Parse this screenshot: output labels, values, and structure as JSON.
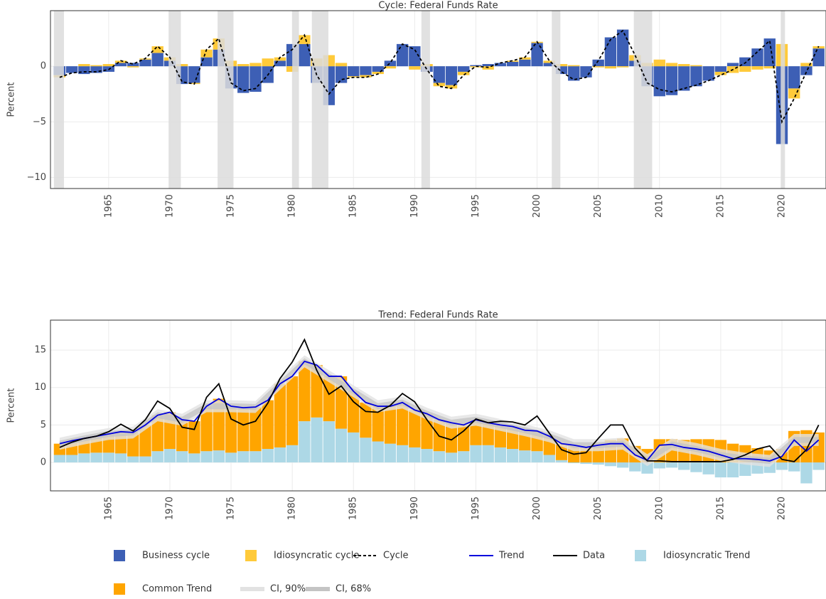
{
  "chart_data": [
    {
      "type": "bar",
      "title": "Cycle: Federal Funds Rate",
      "y_label": "Percent",
      "xlim": [
        1960.25,
        2023.6
      ],
      "xticks": [
        1965,
        1970,
        1975,
        1980,
        1985,
        1990,
        1995,
        2000,
        2005,
        2010,
        2015,
        2020
      ],
      "ylim": [
        -11,
        5
      ],
      "yticks": [
        {
          "value": -10,
          "label": "−10"
        },
        {
          "value": -5,
          "label": "−5"
        },
        0
      ],
      "grid": true,
      "x": [
        1961,
        1962,
        1963,
        1964,
        1965,
        1966,
        1967,
        1968,
        1969,
        1970,
        1971,
        1972,
        1973,
        1974,
        1975,
        1976,
        1977,
        1978,
        1979,
        1980,
        1981,
        1982,
        1983,
        1984,
        1985,
        1986,
        1987,
        1988,
        1989,
        1990,
        1991,
        1992,
        1993,
        1994,
        1995,
        1996,
        1997,
        1998,
        1999,
        2000,
        2001,
        2002,
        2003,
        2004,
        2005,
        2006,
        2007,
        2008,
        2009,
        2010,
        2011,
        2012,
        2013,
        2014,
        2015,
        2016,
        2017,
        2018,
        2019,
        2020,
        2021,
        2022,
        2023
      ],
      "recessions": [
        [
          1960.53,
          1961.35
        ],
        [
          1969.9,
          1970.9
        ],
        [
          1973.9,
          1975.2
        ],
        [
          1980.0,
          1980.55
        ],
        [
          1981.6,
          1982.95
        ],
        [
          1990.55,
          1991.25
        ],
        [
          2001.2,
          2001.9
        ],
        [
          2007.9,
          2009.4
        ],
        [
          2019.9,
          2020.25
        ]
      ],
      "recession_color": "#dcdcdc",
      "series": [
        {
          "name": "Business cycle",
          "type": "bar",
          "color": "#3d5fb5",
          "values": [
            -0.8,
            -0.6,
            -0.7,
            -0.6,
            -0.5,
            0.3,
            0.3,
            0.6,
            1.2,
            0.5,
            -1.6,
            -1.5,
            0.8,
            1.5,
            -2.0,
            -2.4,
            -2.3,
            -1.5,
            0.5,
            2.0,
            2.0,
            -1.5,
            -3.5,
            -1.5,
            -0.9,
            -0.8,
            -0.5,
            0.5,
            2.0,
            1.8,
            -0.5,
            -1.5,
            -1.7,
            -0.5,
            0.1,
            0.2,
            0.3,
            0.4,
            0.6,
            2.1,
            0.3,
            -0.7,
            -1.3,
            -1.0,
            0.6,
            2.6,
            3.3,
            0.5,
            -1.8,
            -2.7,
            -2.6,
            -2.2,
            -1.8,
            -1.3,
            -0.5,
            0.3,
            0.8,
            1.6,
            2.5,
            -7.0,
            -2.0,
            -0.8,
            1.6
          ]
        },
        {
          "name": "Idiosyncratic cycle",
          "type": "bar",
          "color": "#ffca3a",
          "values": [
            -0.2,
            0,
            0.2,
            0.1,
            0.2,
            0.2,
            -0.1,
            0.1,
            0.6,
            0.3,
            0.2,
            -0.1,
            0.7,
            1.0,
            0.5,
            0.2,
            0.3,
            0.7,
            0.3,
            -0.5,
            0.8,
            0.7,
            1.0,
            0.3,
            -0.1,
            -0.2,
            -0.2,
            -0.2,
            0,
            -0.3,
            0.2,
            -0.3,
            -0.3,
            -0.3,
            -0.1,
            -0.3,
            0,
            0.1,
            0.2,
            0.1,
            0.2,
            0.2,
            0.1,
            0,
            -0.1,
            -0.2,
            -0.1,
            0.5,
            0.3,
            0.6,
            0.3,
            0.2,
            0.1,
            0,
            -0.3,
            -0.6,
            -0.5,
            -0.3,
            -0.2,
            2.0,
            -0.9,
            0.3,
            0.2
          ]
        },
        {
          "name": "Cycle",
          "type": "line",
          "dash": true,
          "color": "#000000",
          "values": [
            -1.0,
            -0.6,
            -0.5,
            -0.5,
            -0.3,
            0.5,
            0.2,
            0.7,
            1.8,
            0.8,
            -1.4,
            -1.6,
            1.5,
            2.5,
            -1.5,
            -2.2,
            -2.0,
            -0.8,
            0.8,
            1.5,
            2.8,
            -0.8,
            -2.5,
            -1.2,
            -1.0,
            -1.0,
            -0.7,
            0.3,
            2.0,
            1.5,
            -0.3,
            -1.8,
            -2.0,
            -0.8,
            0.0,
            -0.1,
            0.3,
            0.5,
            0.8,
            2.2,
            0.5,
            -0.5,
            -1.2,
            -1.0,
            0.5,
            2.4,
            3.2,
            1.0,
            -1.5,
            -2.1,
            -2.3,
            -2.0,
            -1.7,
            -1.3,
            -0.8,
            -0.3,
            0.3,
            1.3,
            2.3,
            -5.0,
            -2.9,
            -0.5,
            1.8
          ]
        }
      ]
    },
    {
      "type": "bar",
      "title": "Trend: Federal Funds Rate",
      "y_label": "Percent",
      "xlim": [
        1960.25,
        2023.6
      ],
      "xticks": [
        1965,
        1970,
        1975,
        1980,
        1985,
        1990,
        1995,
        2000,
        2005,
        2010,
        2015,
        2020
      ],
      "ylim": [
        -3.8,
        19
      ],
      "yticks": [
        0,
        5,
        10,
        15
      ],
      "grid": true,
      "x": [
        1961,
        1962,
        1963,
        1964,
        1965,
        1966,
        1967,
        1968,
        1969,
        1970,
        1971,
        1972,
        1973,
        1974,
        1975,
        1976,
        1977,
        1978,
        1979,
        1980,
        1981,
        1982,
        1983,
        1984,
        1985,
        1986,
        1987,
        1988,
        1989,
        1990,
        1991,
        1992,
        1993,
        1994,
        1995,
        1996,
        1997,
        1998,
        1999,
        2000,
        2001,
        2002,
        2003,
        2004,
        2005,
        2006,
        2007,
        2008,
        2009,
        2010,
        2011,
        2012,
        2013,
        2014,
        2015,
        2016,
        2017,
        2018,
        2019,
        2020,
        2021,
        2022,
        2023
      ],
      "series": [
        {
          "name": "Trend",
          "type": "line",
          "color": "#0000dd",
          "values": [
            2.5,
            2.9,
            3.2,
            3.5,
            3.8,
            4.1,
            4.0,
            5.0,
            6.3,
            6.7,
            5.7,
            5.5,
            7.5,
            8.5,
            7.5,
            7.3,
            7.4,
            8.3,
            10.5,
            11.5,
            13.5,
            13.0,
            11.5,
            11.5,
            9.5,
            8.0,
            7.5,
            7.5,
            8.0,
            7.0,
            6.5,
            5.7,
            5.3,
            5.0,
            5.7,
            5.3,
            5.0,
            4.8,
            4.3,
            4.2,
            3.5,
            2.5,
            2.3,
            2.0,
            2.3,
            2.5,
            2.5,
            1.0,
            0.3,
            2.3,
            2.4,
            2.0,
            1.8,
            1.5,
            1.0,
            0.5,
            0.5,
            0.4,
            0.2,
            0.8,
            3.0,
            1.5,
            3.0
          ]
        },
        {
          "name": "Data",
          "type": "line",
          "color": "#000000",
          "values": [
            2.0,
            2.7,
            3.2,
            3.5,
            4.1,
            5.1,
            4.2,
            5.7,
            8.2,
            7.2,
            4.7,
            4.4,
            8.7,
            10.5,
            5.8,
            5.0,
            5.5,
            7.9,
            11.2,
            13.4,
            16.4,
            12.3,
            9.1,
            10.2,
            8.1,
            6.8,
            6.7,
            7.6,
            9.2,
            8.1,
            5.7,
            3.5,
            3.0,
            4.2,
            5.8,
            5.3,
            5.5,
            5.4,
            5.0,
            6.2,
            3.9,
            1.7,
            1.1,
            1.3,
            3.2,
            5.0,
            5.0,
            1.9,
            0.2,
            0.2,
            0.1,
            0.1,
            0.1,
            0.1,
            0.1,
            0.4,
            1.0,
            1.8,
            2.2,
            0.4,
            0.1,
            1.7,
            5.0
          ]
        },
        {
          "name": "Idiosyncratic Trend",
          "type": "bar",
          "color": "#add8e6",
          "values": [
            1.0,
            1.0,
            1.2,
            1.3,
            1.3,
            1.2,
            0.8,
            0.8,
            1.5,
            1.8,
            1.5,
            1.2,
            1.5,
            1.6,
            1.3,
            1.5,
            1.5,
            1.8,
            2.0,
            2.3,
            5.5,
            6.0,
            5.5,
            4.5,
            4.0,
            3.3,
            2.8,
            2.5,
            2.3,
            2.0,
            1.8,
            1.5,
            1.3,
            1.5,
            2.3,
            2.3,
            2.0,
            1.8,
            1.6,
            1.5,
            1.0,
            0.3,
            -0.1,
            -0.2,
            -0.3,
            -0.5,
            -0.7,
            -1.2,
            -1.5,
            -0.8,
            -0.7,
            -1.0,
            -1.3,
            -1.6,
            -2.0,
            -2.0,
            -1.8,
            -1.5,
            -1.4,
            -1.0,
            -1.2,
            -2.8,
            -1.0
          ]
        },
        {
          "name": "Common Trend",
          "type": "bar",
          "color": "#ffa500",
          "values": [
            1.5,
            1.9,
            2.0,
            2.2,
            2.5,
            2.9,
            3.2,
            4.2,
            4.8,
            4.9,
            4.2,
            4.3,
            6.0,
            6.9,
            6.2,
            5.8,
            5.9,
            6.5,
            8.5,
            9.2,
            8.0,
            7.0,
            6.0,
            7.0,
            5.5,
            4.7,
            4.7,
            5.0,
            5.7,
            5.0,
            4.7,
            4.2,
            4.0,
            3.5,
            3.4,
            3.0,
            3.0,
            3.0,
            2.7,
            2.7,
            2.5,
            2.2,
            2.4,
            2.2,
            2.6,
            3.0,
            3.2,
            2.2,
            1.8,
            3.1,
            3.1,
            3.0,
            3.1,
            3.1,
            3.0,
            2.5,
            2.3,
            1.9,
            1.6,
            1.8,
            4.2,
            4.3,
            4.0
          ]
        },
        {
          "name": "CI, 90%",
          "type": "band",
          "color": "#e2e2e2",
          "x": [
            1961,
            1963,
            1965,
            1967,
            1969,
            1971,
            1973,
            1975,
            1977,
            1979,
            1981,
            1983,
            1985,
            1987,
            1989,
            1991,
            1993,
            1995,
            1997,
            1999,
            2001,
            2003,
            2005,
            2007,
            2009,
            2011,
            2013,
            2015,
            2017,
            2019,
            2021,
            2023
          ],
          "lower": [
            1.7,
            2.4,
            3.0,
            3.2,
            5.5,
            4.9,
            6.7,
            6.7,
            6.6,
            9.7,
            12.7,
            10.7,
            8.7,
            6.7,
            7.2,
            5.7,
            4.5,
            4.9,
            4.2,
            3.5,
            2.7,
            1.5,
            1.5,
            1.7,
            -0.5,
            1.6,
            1.0,
            0.2,
            -0.3,
            -0.6,
            2.2,
            2.2
          ],
          "upper": [
            3.3,
            4.0,
            4.6,
            4.8,
            7.1,
            6.5,
            8.3,
            8.3,
            8.2,
            11.3,
            14.3,
            12.3,
            10.3,
            8.3,
            8.8,
            7.3,
            6.1,
            6.5,
            5.8,
            5.1,
            4.3,
            3.1,
            3.1,
            3.3,
            1.1,
            3.2,
            2.6,
            1.8,
            1.3,
            1.0,
            3.8,
            3.8
          ]
        },
        {
          "name": "CI, 68%",
          "type": "band",
          "color": "#c4c4c4",
          "x": [
            1961,
            1963,
            1965,
            1967,
            1969,
            1971,
            1973,
            1975,
            1977,
            1979,
            1981,
            1983,
            1985,
            1987,
            1989,
            1991,
            1993,
            1995,
            1997,
            1999,
            2001,
            2003,
            2005,
            2007,
            2009,
            2011,
            2013,
            2015,
            2017,
            2019,
            2021,
            2023
          ],
          "lower": [
            2.1,
            2.8,
            3.4,
            3.6,
            5.9,
            5.3,
            7.1,
            7.1,
            7.0,
            10.1,
            13.1,
            11.1,
            9.1,
            7.1,
            7.6,
            6.1,
            4.9,
            5.3,
            4.6,
            3.9,
            3.1,
            1.9,
            1.9,
            2.1,
            -0.1,
            2.0,
            1.4,
            0.6,
            0.1,
            -0.2,
            2.6,
            2.6
          ],
          "upper": [
            2.9,
            3.6,
            4.2,
            4.4,
            6.7,
            6.1,
            7.9,
            7.9,
            7.8,
            10.9,
            13.9,
            11.9,
            9.9,
            7.9,
            8.4,
            6.9,
            5.7,
            6.1,
            5.4,
            4.7,
            3.9,
            2.7,
            2.7,
            2.9,
            0.7,
            2.8,
            2.2,
            1.4,
            0.9,
            0.6,
            3.4,
            3.4
          ]
        }
      ]
    }
  ]
}
